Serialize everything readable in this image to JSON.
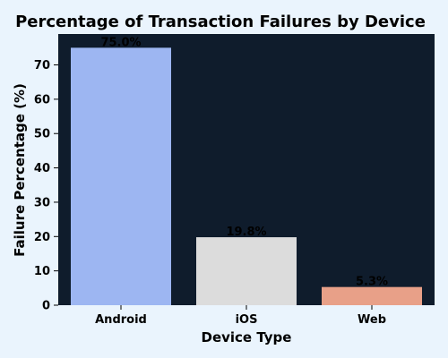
{
  "chart_data": {
    "type": "bar",
    "title": "Percentage of Transaction Failures by Device",
    "xlabel": "Device Type",
    "ylabel": "Failure Percentage (%)",
    "categories": [
      "Android",
      "iOS",
      "Web"
    ],
    "values": [
      75.0,
      19.8,
      5.3
    ],
    "data_labels": [
      "75.0%",
      "19.8%",
      "5.3%"
    ],
    "ylim": [
      0,
      79
    ],
    "yticks": [
      0,
      10,
      20,
      30,
      40,
      50,
      60,
      70
    ],
    "grid": false,
    "colors": {
      "bars": [
        "#9db6f2",
        "#dcdcdc",
        "#e8a088"
      ],
      "plot_background": "#0f1c2c",
      "figure_background": "#eaf4fd"
    }
  }
}
